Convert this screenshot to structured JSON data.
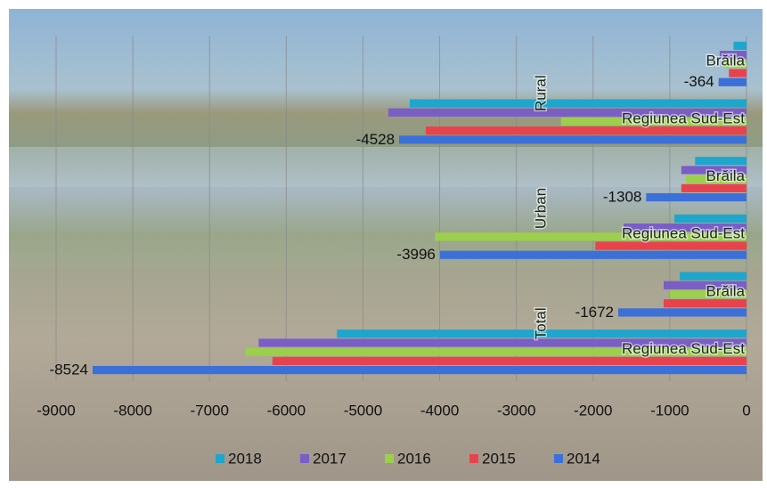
{
  "chart_data": {
    "type": "hbar",
    "groups": [
      {
        "label": "Total",
        "categories": [
          "Regiunea Sud-Est",
          "Brăila"
        ]
      },
      {
        "label": "Urban",
        "categories": [
          "Regiunea Sud-Est",
          "Brăila"
        ]
      },
      {
        "label": "Rural",
        "categories": [
          "Regiunea Sud-Est",
          "Brăila"
        ]
      }
    ],
    "series": [
      {
        "name": "2018",
        "color": "#1ea6cc",
        "values": [
          -5340,
          -870,
          -940,
          -670,
          -4390,
          -170
        ]
      },
      {
        "name": "2017",
        "color": "#7a5ec6",
        "values": [
          -6360,
          -1080,
          -1600,
          -850,
          -4670,
          -350
        ]
      },
      {
        "name": "2016",
        "color": "#9ccf4c",
        "values": [
          -6530,
          -1000,
          -4060,
          -790,
          -2420,
          -290
        ]
      },
      {
        "name": "2015",
        "color": "#e8434d",
        "values": [
          -6180,
          -1080,
          -1970,
          -850,
          -4180,
          -230
        ]
      },
      {
        "name": "2014",
        "color": "#3b70d8",
        "values": [
          -8524,
          -1672,
          -3996,
          -1308,
          -4528,
          -364
        ],
        "data_labels": true
      }
    ],
    "xlim": [
      -9000,
      0
    ],
    "xticks": [
      -9000,
      -8000,
      -7000,
      -6000,
      -5000,
      -4000,
      -3000,
      -2000,
      -1000,
      0
    ],
    "grid": true,
    "legend": "bottom"
  }
}
